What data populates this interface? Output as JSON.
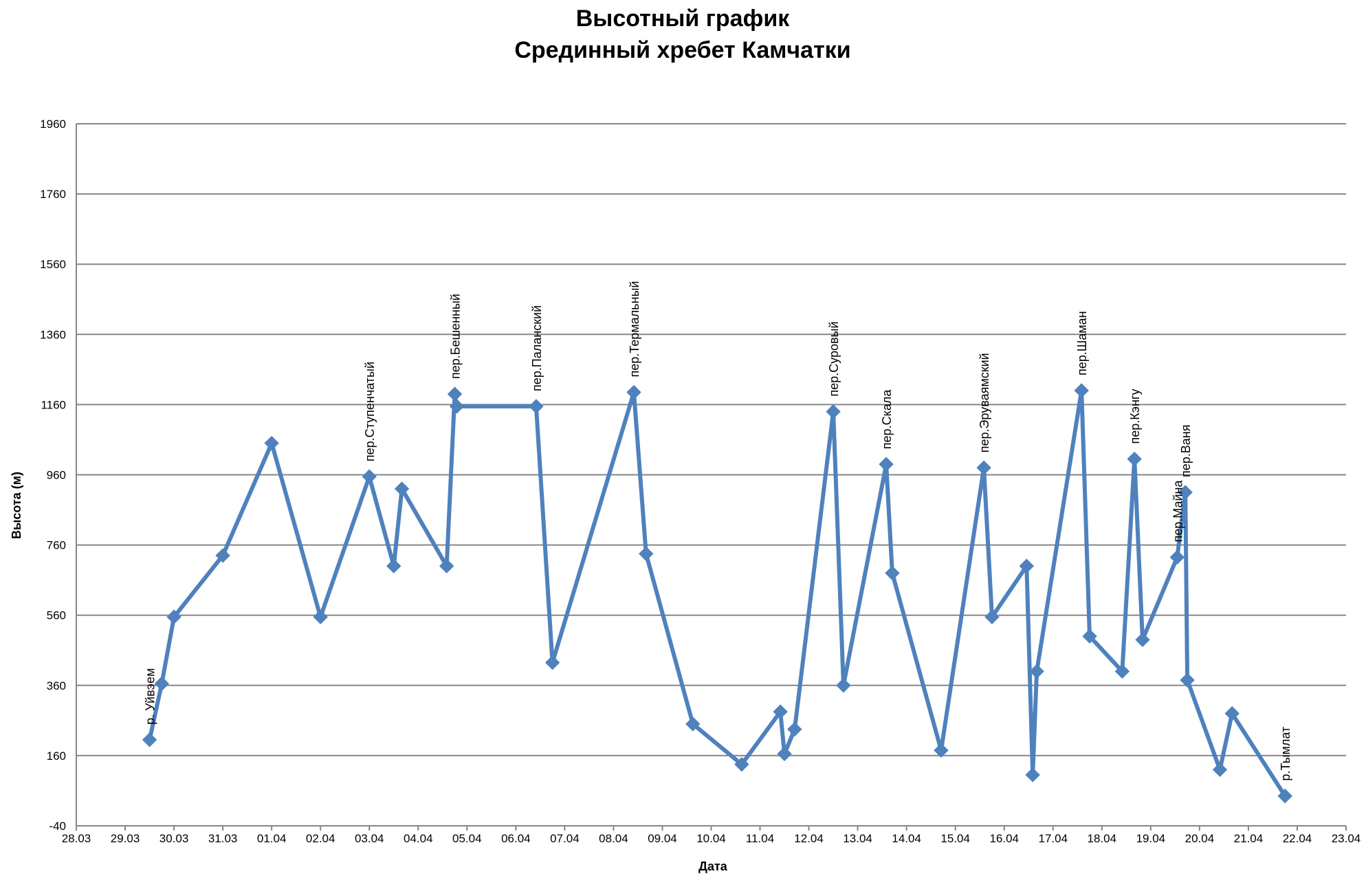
{
  "chart_data": {
    "type": "line",
    "title_lines": [
      "Высотный график",
      "Срединный хребет Камчатки"
    ],
    "xlabel": "Дата",
    "ylabel": "Высота (м)",
    "x_ticks": [
      "28.03",
      "29.03",
      "30.03",
      "31.03",
      "01.04",
      "02.04",
      "03.04",
      "04.04",
      "05.04",
      "06.04",
      "07.04",
      "08.04",
      "09.04",
      "10.04",
      "11.04",
      "12.04",
      "13.04",
      "14.04",
      "15.04",
      "16.04",
      "17.04",
      "18.04",
      "19.04",
      "20.04",
      "21.04",
      "22.04",
      "23.04"
    ],
    "y_ticks": [
      -40,
      160,
      360,
      560,
      760,
      960,
      1160,
      1360,
      1560,
      1760,
      1960
    ],
    "ylim": [
      -40,
      1960
    ],
    "grid": "horizontal",
    "legend": "none",
    "color": "#4F81BD",
    "series": [
      {
        "points": [
          {
            "date": "29.03 12:00",
            "y": 205
          },
          {
            "date": "29.03 18:00",
            "y": 365
          },
          {
            "date": "30.03 00:00",
            "y": 555
          },
          {
            "date": "31.03 00:00",
            "y": 730
          },
          {
            "date": "01.04 00:00",
            "y": 1050
          },
          {
            "date": "02.04 00:00",
            "y": 555
          },
          {
            "date": "03.04 00:00",
            "y": 955
          },
          {
            "date": "03.04 12:00",
            "y": 700
          },
          {
            "date": "03.04 16:00",
            "y": 920
          },
          {
            "date": "04.04 14:00",
            "y": 700
          },
          {
            "date": "04.04 18:00",
            "y": 1190
          },
          {
            "date": "04.04 19:00",
            "y": 1155
          },
          {
            "date": "06.04 10:00",
            "y": 1155
          },
          {
            "date": "06.04 18:00",
            "y": 425
          },
          {
            "date": "08.04 10:00",
            "y": 1195
          },
          {
            "date": "08.04 16:00",
            "y": 735
          },
          {
            "date": "09.04 15:00",
            "y": 250
          },
          {
            "date": "10.04 15:00",
            "y": 135
          },
          {
            "date": "11.04 10:00",
            "y": 285
          },
          {
            "date": "11.04 12:00",
            "y": 165
          },
          {
            "date": "11.04 17:00",
            "y": 235
          },
          {
            "date": "12.04 12:00",
            "y": 1140
          },
          {
            "date": "12.04 17:00",
            "y": 360
          },
          {
            "date": "13.04 14:00",
            "y": 990
          },
          {
            "date": "13.04 17:00",
            "y": 680
          },
          {
            "date": "14.04 17:00",
            "y": 175
          },
          {
            "date": "15.04 14:00",
            "y": 980
          },
          {
            "date": "15.04 18:00",
            "y": 555
          },
          {
            "date": "16.04 11:00",
            "y": 700
          },
          {
            "date": "16.04 14:00",
            "y": 105
          },
          {
            "date": "16.04 16:00",
            "y": 400
          },
          {
            "date": "17.04 14:00",
            "y": 1200
          },
          {
            "date": "17.04 18:00",
            "y": 500
          },
          {
            "date": "18.04 10:00",
            "y": 400
          },
          {
            "date": "18.04 16:00",
            "y": 1005
          },
          {
            "date": "18.04 20:00",
            "y": 490
          },
          {
            "date": "19.04 13:00",
            "y": 725
          },
          {
            "date": "19.04 17:00",
            "y": 910
          },
          {
            "date": "19.04 18:00",
            "y": 375
          },
          {
            "date": "20.04 10:00",
            "y": 120
          },
          {
            "date": "20.04 16:00",
            "y": 280
          },
          {
            "date": "21.04 18:00",
            "y": 45
          }
        ]
      }
    ],
    "annotations": [
      {
        "text": "р. Уйвэем",
        "date": "29.03 12:00",
        "y": 205
      },
      {
        "text": "пер.Ступенчатый",
        "date": "03.04 00:00",
        "y": 955
      },
      {
        "text": "пер.Бешенный",
        "date": "04.04 18:00",
        "y": 1190
      },
      {
        "text": "пер.Паланский",
        "date": "06.04 10:00",
        "y": 1155
      },
      {
        "text": "пер.Термальный",
        "date": "08.04 10:00",
        "y": 1195
      },
      {
        "text": "пер.Суровый",
        "date": "12.04 12:00",
        "y": 1140
      },
      {
        "text": "пер.Скала",
        "date": "13.04 14:00",
        "y": 990
      },
      {
        "text": "пер.Эруваямский",
        "date": "15.04 14:00",
        "y": 980
      },
      {
        "text": "пер.Шаман",
        "date": "17.04 14:00",
        "y": 1200
      },
      {
        "text": "пер.Кэнгу",
        "date": "18.04 16:00",
        "y": 1005
      },
      {
        "text": "пер.Майна",
        "date": "19.04 13:00",
        "y": 725
      },
      {
        "text": "пер.Ваня",
        "date": "19.04 17:00",
        "y": 910
      },
      {
        "text": "р.Тымлат",
        "date": "21.04 18:00",
        "y": 45
      }
    ]
  }
}
